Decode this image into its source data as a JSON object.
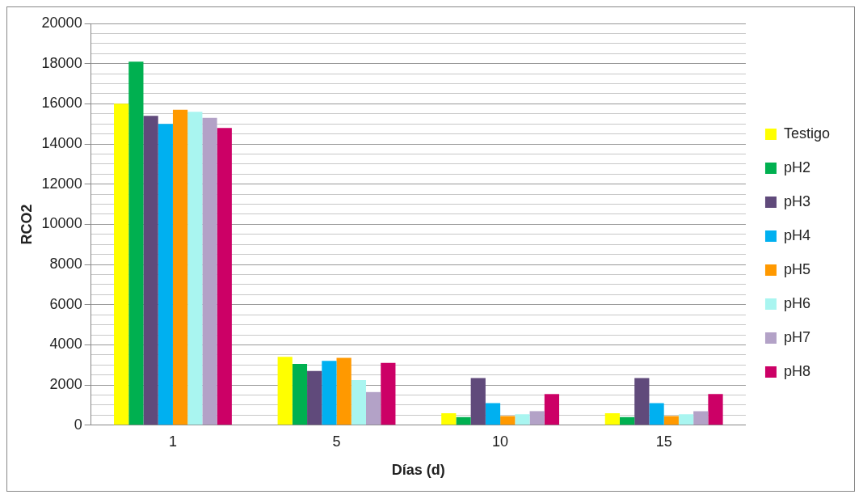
{
  "chart_data": {
    "type": "bar",
    "xlabel": "Días (d)",
    "ylabel": "RCO2",
    "categories": [
      "1",
      "5",
      "10",
      "15"
    ],
    "series": [
      {
        "name": "Testigo",
        "color": "#ffff00",
        "values": [
          16000,
          3400,
          600,
          600
        ]
      },
      {
        "name": "pH2",
        "color": "#00b050",
        "values": [
          18100,
          3050,
          400,
          400
        ]
      },
      {
        "name": "pH3",
        "color": "#604a7b",
        "values": [
          15400,
          2700,
          2350,
          2350
        ]
      },
      {
        "name": "pH4",
        "color": "#00b0f0",
        "values": [
          15000,
          3200,
          1100,
          1100
        ]
      },
      {
        "name": "pH5",
        "color": "#ff9900",
        "values": [
          15700,
          3350,
          450,
          450
        ]
      },
      {
        "name": "pH6",
        "color": "#a9f5f0",
        "values": [
          15600,
          2250,
          550,
          550
        ]
      },
      {
        "name": "pH7",
        "color": "#b3a2c7",
        "values": [
          15300,
          1650,
          700,
          700
        ]
      },
      {
        "name": "pH8",
        "color": "#cc0066",
        "values": [
          14800,
          3100,
          1550,
          1550
        ]
      }
    ],
    "ylim": [
      0,
      20000
    ],
    "yticks": [
      0,
      {
        "value": 500,
        "label": null
      },
      {
        "value": 1000,
        "label": null
      },
      {
        "value": 1500,
        "label": null
      },
      2000,
      {
        "value": 2500,
        "label": null
      },
      {
        "value": 3000,
        "label": null
      },
      {
        "value": 3500,
        "label": null
      },
      4000,
      {
        "value": 4500,
        "label": null
      },
      {
        "value": 5000,
        "label": null
      },
      {
        "value": 5500,
        "label": null
      },
      6000,
      {
        "value": 6500,
        "label": null
      },
      {
        "value": 7000,
        "label": null
      },
      {
        "value": 7500,
        "label": null
      },
      8000,
      {
        "value": 8500,
        "label": null
      },
      {
        "value": 9000,
        "label": null
      },
      {
        "value": 9500,
        "label": null
      },
      10000,
      {
        "value": 10500,
        "label": null
      },
      {
        "value": 11000,
        "label": null
      },
      {
        "value": 11500,
        "label": null
      },
      12000,
      {
        "value": 12500,
        "label": null
      },
      {
        "value": 13000,
        "label": null
      },
      {
        "value": 13500,
        "label": null
      },
      14000,
      {
        "value": 14500,
        "label": null
      },
      {
        "value": 15000,
        "label": null
      },
      {
        "value": 15500,
        "label": null
      },
      16000,
      {
        "value": 16500,
        "label": null
      },
      {
        "value": 17000,
        "label": null
      },
      {
        "value": 17500,
        "label": null
      },
      18000,
      {
        "value": 18500,
        "label": null
      },
      {
        "value": 19000,
        "label": null
      },
      {
        "value": 19500,
        "label": null
      },
      20000
    ],
    "grid": "y",
    "legend": "right"
  }
}
